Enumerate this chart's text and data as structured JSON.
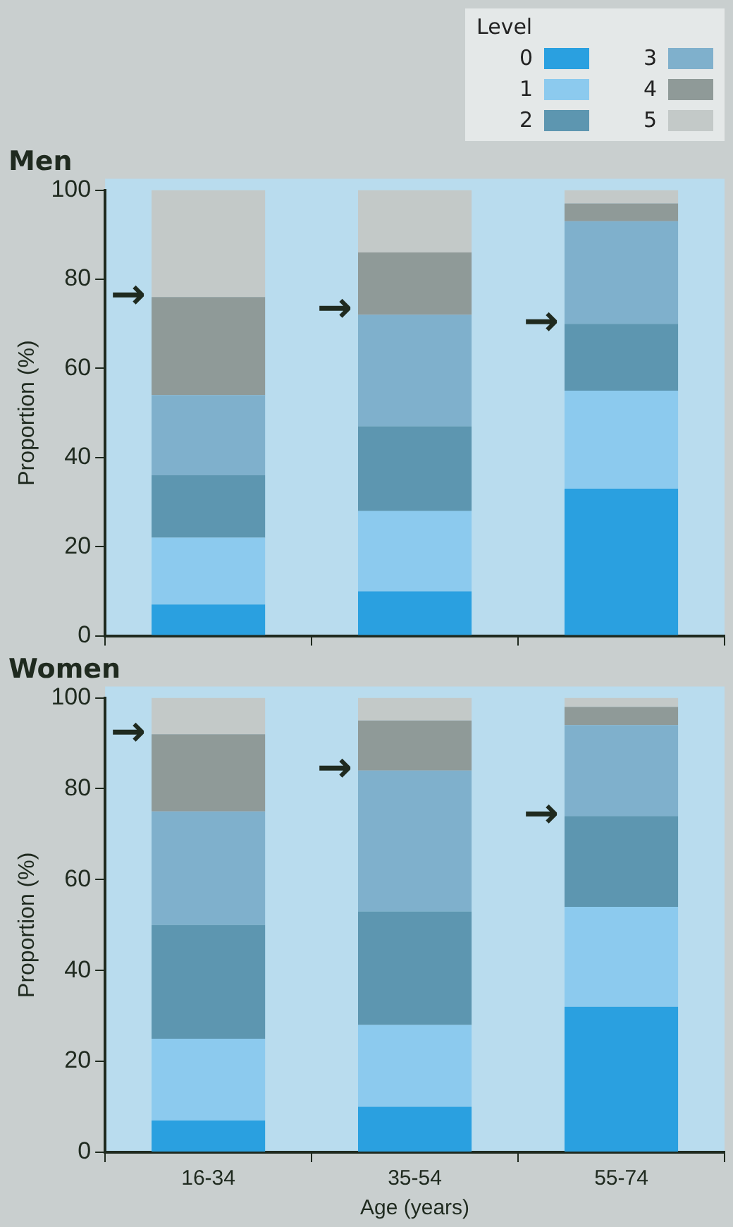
{
  "chart_data": [
    {
      "type": "bar",
      "title": "Men",
      "ylabel": "Proportion (%)",
      "categories": [
        "16-34",
        "35-54",
        "55-74"
      ],
      "stacked": true,
      "ylim": [
        0,
        100
      ],
      "yticks": [
        0,
        20,
        40,
        60,
        80,
        100
      ],
      "grid": false,
      "legend": "top right",
      "legend_title": "Level",
      "tick_labels": "y",
      "series": [
        {
          "name": "0",
          "color": "#2aa0e0",
          "values": [
            7,
            10,
            33
          ]
        },
        {
          "name": "1",
          "color": "#8ccaee",
          "values": [
            15,
            18,
            22
          ]
        },
        {
          "name": "2",
          "color": "#5d96b0",
          "values": [
            14,
            19,
            15
          ]
        },
        {
          "name": "3",
          "color": "#7fb0cc",
          "values": [
            18,
            25,
            23
          ]
        },
        {
          "name": "4",
          "color": "#8f9a98",
          "values": [
            22,
            14,
            4
          ]
        },
        {
          "name": "5",
          "color": "#c3c9c8",
          "values": [
            24,
            14,
            3
          ]
        }
      ],
      "annotations": [
        {
          "text": "→",
          "x": "16-34",
          "y": 76
        },
        {
          "text": "→",
          "x": "35-54",
          "y": 73
        },
        {
          "text": "→",
          "x": "55-74",
          "y": 70
        }
      ]
    },
    {
      "type": "bar",
      "title": "Women",
      "ylabel": "Proportion (%)",
      "xlabel": "Age (years)",
      "categories": [
        "16-34",
        "35-54",
        "55-74"
      ],
      "stacked": true,
      "ylim": [
        0,
        100
      ],
      "yticks": [
        0,
        20,
        40,
        60,
        80,
        100
      ],
      "grid": false,
      "series": [
        {
          "name": "0",
          "color": "#2aa0e0",
          "values": [
            7,
            10,
            32
          ]
        },
        {
          "name": "1",
          "color": "#8ccaee",
          "values": [
            18,
            18,
            22
          ]
        },
        {
          "name": "2",
          "color": "#5d96b0",
          "values": [
            25,
            25,
            20
          ]
        },
        {
          "name": "3",
          "color": "#7fb0cc",
          "values": [
            25,
            31,
            20
          ]
        },
        {
          "name": "4",
          "color": "#8f9a98",
          "values": [
            17,
            11,
            4
          ]
        },
        {
          "name": "5",
          "color": "#c3c9c8",
          "values": [
            8,
            5,
            2
          ]
        }
      ],
      "annotations": [
        {
          "text": "→",
          "x": "16-34",
          "y": 92
        },
        {
          "text": "→",
          "x": "35-54",
          "y": 84
        },
        {
          "text": "→",
          "x": "55-74",
          "y": 74
        }
      ]
    }
  ]
}
